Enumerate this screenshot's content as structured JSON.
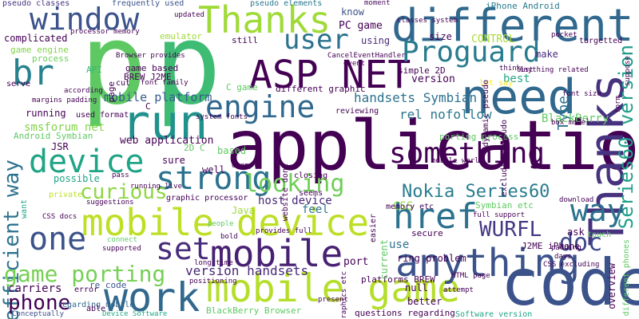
{
  "words": [
    {
      "text": "application",
      "color": "#440154"
    },
    {
      "text": "p",
      "color": "#5ec962"
    },
    {
      "text": "p",
      "color": "#3fbc73"
    },
    {
      "text": "code",
      "color": "#3b528b"
    },
    {
      "text": "different",
      "color": "#31688e"
    },
    {
      "text": "need",
      "color": "#31688e"
    },
    {
      "text": "run",
      "color": "#21918c"
    },
    {
      "text": "Thanks",
      "color": "#a0da39"
    },
    {
      "text": "Thanks",
      "color": "#46327e"
    },
    {
      "text": "ASP NET",
      "color": "#440154"
    },
    {
      "text": "mobile device",
      "color": "#bddf26"
    },
    {
      "text": "mobile game",
      "color": "#b5de2b"
    },
    {
      "text": "work",
      "color": "#31688e"
    },
    {
      "text": "anything",
      "color": "#3b528b"
    },
    {
      "text": "something",
      "color": "#440154"
    },
    {
      "text": "window",
      "color": "#3b528b"
    },
    {
      "text": "Proguard",
      "color": "#287c8e"
    },
    {
      "text": "device",
      "color": "#20a486"
    },
    {
      "text": "mobile",
      "color": "#482173"
    },
    {
      "text": "set",
      "color": "#472d7b"
    },
    {
      "text": "strong",
      "color": "#2c728e"
    },
    {
      "text": "engine",
      "color": "#31688e"
    },
    {
      "text": "user",
      "color": "#2c728e"
    },
    {
      "text": "br",
      "color": "#26828e"
    },
    {
      "text": "href",
      "color": "#2c728e"
    },
    {
      "text": "way",
      "color": "#2c728e"
    },
    {
      "text": "efficient way",
      "color": "#2c728e"
    },
    {
      "text": "Series60 version",
      "color": "#1f9e89"
    },
    {
      "text": "one",
      "color": "#3b528b"
    },
    {
      "text": "game porting",
      "color": "#75d054"
    },
    {
      "text": "curious",
      "color": "#8fd744"
    },
    {
      "text": "looking",
      "color": "#6ece58"
    },
    {
      "text": "Nokia Series60",
      "color": "#287c8e"
    },
    {
      "text": "WURFL",
      "color": "#443983"
    },
    {
      "text": "doc",
      "color": "#3e4989"
    },
    {
      "text": "phone",
      "color": "#440154"
    },
    {
      "text": "handsets Symbian",
      "color": "#2c728e"
    },
    {
      "text": "mobile platform",
      "color": "#365c8d"
    },
    {
      "text": "version handsets",
      "color": "#482878"
    },
    {
      "text": "rel nofollow",
      "color": "#2a788e"
    },
    {
      "text": "smsforum net",
      "color": "#84d44b"
    },
    {
      "text": "web application",
      "color": "#440154"
    },
    {
      "text": "Type",
      "color": "#2c728e"
    },
    {
      "text": "BlackBerry",
      "color": "#5ec962"
    },
    {
      "text": "CONTROL",
      "color": "#a8db34"
    },
    {
      "text": "version",
      "color": "#440154"
    },
    {
      "text": "best",
      "color": "#22a785"
    },
    {
      "text": "PC game",
      "color": "#440154"
    },
    {
      "text": "carriers",
      "color": "#440154"
    },
    {
      "text": "complicated",
      "color": "#440154"
    },
    {
      "text": "game engine",
      "color": "#84d44b"
    },
    {
      "text": "frequently used",
      "color": "#3b528b"
    },
    {
      "text": "pseudo classes",
      "color": "#46327e"
    },
    {
      "text": "pseudo elements",
      "color": "#2a788e"
    },
    {
      "text": "know",
      "color": "#3b528b"
    },
    {
      "text": "iPhone Android",
      "color": "#287c8e"
    },
    {
      "text": "moment",
      "color": "#470d60"
    },
    {
      "text": "using",
      "color": "#482878"
    },
    {
      "text": "make",
      "color": "#472d7b"
    },
    {
      "text": "size",
      "color": "#440154"
    },
    {
      "text": "ask",
      "color": "#440154"
    },
    {
      "text": "J2ME iPhone",
      "color": "#440154"
    },
    {
      "text": "ring problem",
      "color": "#440154"
    },
    {
      "text": "platforms BREW",
      "color": "#440154"
    },
    {
      "text": "questions regarding",
      "color": "#440154"
    },
    {
      "text": "Software version",
      "color": "#20a486"
    },
    {
      "text": "BlackBerry Browser",
      "color": "#5ec962"
    },
    {
      "text": "Device Software",
      "color": "#22a785"
    },
    {
      "text": "Conceptually",
      "color": "#3e4989"
    },
    {
      "text": "regarding mobile",
      "color": "#31688e"
    },
    {
      "text": "re code",
      "color": "#3b528b"
    },
    {
      "text": "error",
      "color": "#440154"
    },
    {
      "text": "able",
      "color": "#440154"
    },
    {
      "text": "CSS",
      "color": "#8fd744"
    },
    {
      "text": "feel",
      "color": "#2c728e"
    },
    {
      "text": "seems",
      "color": "#440154"
    },
    {
      "text": "use",
      "color": "#2c728e"
    },
    {
      "text": "port",
      "color": "#440154"
    },
    {
      "text": "null",
      "color": "#440154"
    },
    {
      "text": "better",
      "color": "#440154"
    },
    {
      "text": "secure",
      "color": "#440154"
    },
    {
      "text": "host device",
      "color": "#482878"
    },
    {
      "text": "Java",
      "color": "#a0da39"
    },
    {
      "text": "well",
      "color": "#440154"
    },
    {
      "text": "sure",
      "color": "#440154"
    },
    {
      "text": "possible",
      "color": "#20a486"
    },
    {
      "text": "private",
      "color": "#bddf26"
    },
    {
      "text": "want",
      "color": "#20a486"
    },
    {
      "text": "JSR",
      "color": "#440154"
    },
    {
      "text": "Android Symbian",
      "color": "#5ec962"
    },
    {
      "text": "running",
      "color": "#440154"
    },
    {
      "text": "serve",
      "color": "#440154"
    },
    {
      "text": "API",
      "color": "#35b779"
    },
    {
      "text": "cut",
      "color": "#440154"
    },
    {
      "text": "based",
      "color": "#5ec962"
    },
    {
      "text": "game based",
      "color": "#440154"
    },
    {
      "text": "BREW J2ME",
      "color": "#440154"
    },
    {
      "text": "processor memory",
      "color": "#440154"
    },
    {
      "text": "emulator",
      "color": "#a0da39"
    },
    {
      "text": "updated",
      "color": "#440154"
    },
    {
      "text": "process",
      "color": "#6ece58"
    },
    {
      "text": "still",
      "color": "#440154"
    },
    {
      "text": "CancelEventHandler",
      "color": "#440154"
    },
    {
      "text": "event",
      "color": "#440154"
    },
    {
      "text": "simple 2D",
      "color": "#440154"
    },
    {
      "text": "let say",
      "color": "#fde725"
    },
    {
      "text": "think",
      "color": "#440154"
    },
    {
      "text": "list",
      "color": "#440154"
    },
    {
      "text": "porting process",
      "color": "#5ec962"
    },
    {
      "text": "reviewing",
      "color": "#440154"
    },
    {
      "text": "different graphic",
      "color": "#440154"
    },
    {
      "text": "C game",
      "color": "#5ec962"
    },
    {
      "text": "page",
      "color": "#440154"
    },
    {
      "text": "used format",
      "color": "#440154"
    },
    {
      "text": "according",
      "color": "#440154"
    },
    {
      "text": "system fonts",
      "color": "#440154"
    },
    {
      "text": "2D C",
      "color": "#5ec962"
    },
    {
      "text": "C",
      "color": "#440154"
    },
    {
      "text": "mobile world",
      "color": "#440154"
    },
    {
      "text": "example",
      "color": "#440154"
    },
    {
      "text": "pass",
      "color": "#440154"
    },
    {
      "text": "running live",
      "color": "#440154"
    },
    {
      "text": "suggestions",
      "color": "#440154"
    },
    {
      "text": "graphic processor",
      "color": "#440154"
    },
    {
      "text": "CSS docs",
      "color": "#440154"
    },
    {
      "text": "connect",
      "color": "#5ec962"
    },
    {
      "text": "supported",
      "color": "#440154"
    },
    {
      "text": "long time",
      "color": "#440154"
    },
    {
      "text": "positioning",
      "color": "#440154"
    },
    {
      "text": "bold",
      "color": "#440154"
    },
    {
      "text": "people",
      "color": "#5ec962"
    },
    {
      "text": "provides full",
      "color": "#440154"
    },
    {
      "text": "present",
      "color": "#440154"
    },
    {
      "text": "closing",
      "color": "#440154"
    },
    {
      "text": "website done",
      "color": "#440154"
    },
    {
      "text": "memory etc",
      "color": "#440154"
    },
    {
      "text": "Symbian etc",
      "color": "#5ec962"
    },
    {
      "text": "full support",
      "color": "#440154"
    },
    {
      "text": "download",
      "color": "#440154"
    },
    {
      "text": "touch",
      "color": "#5ec962"
    },
    {
      "text": "days",
      "color": "#440154"
    },
    {
      "text": "padding",
      "color": "#440154"
    },
    {
      "text": "CSS excluding",
      "color": "#440154"
    },
    {
      "text": "overview",
      "color": "#440154"
    },
    {
      "text": "different phones",
      "color": "#5ec962"
    },
    {
      "text": "HTML page",
      "color": "#440154"
    },
    {
      "text": "attempt",
      "color": "#440154"
    },
    {
      "text": "easier",
      "color": "#440154"
    },
    {
      "text": "current",
      "color": "#5ec962"
    },
    {
      "text": "graphics etc",
      "color": "#440154"
    },
    {
      "text": "dynamic pseudo",
      "color": "#440154"
    },
    {
      "text": "excluding pseudo",
      "color": "#440154"
    },
    {
      "text": "classes system",
      "color": "#440154"
    },
    {
      "text": "targetted",
      "color": "#440154"
    },
    {
      "text": "form",
      "color": "#440154"
    },
    {
      "text": "suppose",
      "color": "#440154"
    },
    {
      "text": "font size",
      "color": "#440154"
    },
    {
      "text": "box model",
      "color": "#440154"
    },
    {
      "text": "pocket",
      "color": "#440154"
    },
    {
      "text": "Anything related",
      "color": "#440154"
    },
    {
      "text": "font family",
      "color": "#440154"
    },
    {
      "text": "margins padding",
      "color": "#440154"
    },
    {
      "text": "Browser provides",
      "color": "#440154"
    }
  ]
}
